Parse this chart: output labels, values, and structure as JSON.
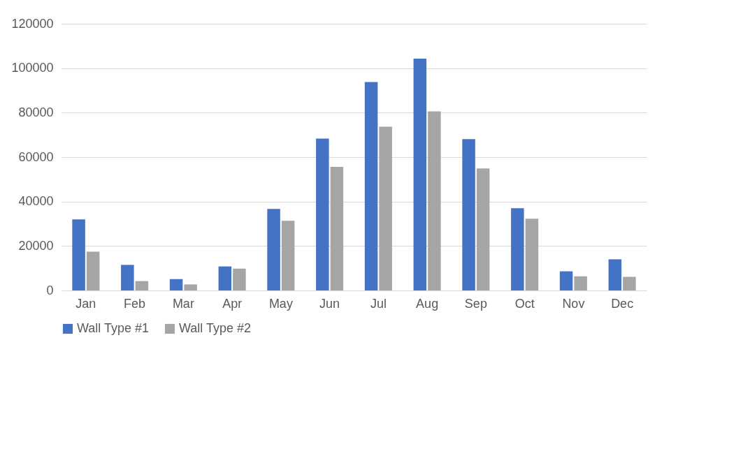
{
  "chart_data": {
    "type": "bar",
    "categories": [
      "Jan",
      "Feb",
      "Mar",
      "Apr",
      "May",
      "Jun",
      "Jul",
      "Aug",
      "Sep",
      "Oct",
      "Nov",
      "Dec"
    ],
    "series": [
      {
        "name": "Wall Type #1",
        "color": "#4472c4",
        "values": [
          32000,
          11500,
          5100,
          10800,
          36700,
          68300,
          93800,
          104300,
          68100,
          37000,
          8600,
          14000
        ]
      },
      {
        "name": "Wall Type #2",
        "color": "#a5a5a5",
        "values": [
          17400,
          4200,
          2700,
          9800,
          31300,
          55600,
          73700,
          80600,
          54900,
          32300,
          6400,
          6100
        ]
      }
    ],
    "ylim": [
      0,
      120000
    ],
    "yticks": [
      0,
      20000,
      40000,
      60000,
      80000,
      100000,
      120000
    ],
    "grid": "y",
    "legend": "bottom"
  }
}
